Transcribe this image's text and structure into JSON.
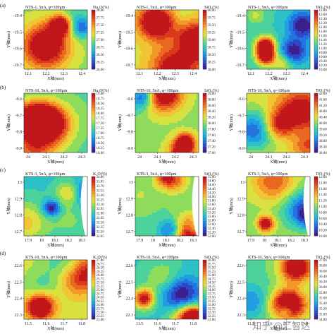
{
  "figure": {
    "watermark": "知乎 @汇智达",
    "rows": [
      {
        "label": "(a)",
        "panels": [
          {
            "title": "NTS-1, 5nA, φ=100μm",
            "oxide": "Na₂O(%)",
            "xlabel": "X轴(mm)",
            "ylabel": "Y轴(mm)",
            "xticks": [
              "12.1",
              "12.2",
              "12.3",
              "12.4"
            ],
            "yticks": [
              "-19.4",
              "-19.5",
              "-19.6",
              "-19.7"
            ],
            "cbticks": [
              "28.00",
              "27.75",
              "27.50",
              "27.25",
              "27.00",
              "26.75",
              "26.50",
              "26.25",
              "26.00"
            ],
            "seed": 11
          },
          {
            "title": "NTS-1, 5nA, φ=100μm",
            "oxide": "SiO₂(%)",
            "xlabel": "X轴(mm)",
            "ylabel": "Y轴(mm)",
            "xticks": [
              "12.1",
              "12.2",
              "12.3",
              "12.4"
            ],
            "yticks": [
              "-19.4",
              "-19.5",
              "-19.6",
              "-19.7"
            ],
            "cbticks": [
              "60.00",
              "59.75",
              "59.50",
              "59.25",
              "59.00",
              "58.75",
              "58.50",
              "58.25",
              "58.00"
            ],
            "seed": 12
          },
          {
            "title": "NTS-1, 5nA, φ=100μm",
            "oxide": "TiO₂(%)",
            "xlabel": "X轴(mm)",
            "ylabel": "Y轴(mm)",
            "xticks": [
              "12.1",
              "12.2",
              "12.3",
              "12.4"
            ],
            "yticks": [
              "-19.4",
              "-19.5",
              "-19.6",
              "-19.7"
            ],
            "cbticks": [
              "12.80",
              "12.60",
              "12.40",
              "12.20",
              "12.00",
              "11.80",
              "11.60",
              "11.40",
              "11.20",
              "11.00",
              "10.80",
              "10.60",
              "10.40",
              "10.20",
              "10.00"
            ],
            "seed": 13
          }
        ]
      },
      {
        "label": "(b)",
        "panels": [
          {
            "title": "NTS-10, 5nA, φ=100μm",
            "oxide": "Na₂O(%)",
            "xlabel": "X轴(mm)",
            "ylabel": "Y轴(mm)",
            "xticks": [
              "24",
              "24.1",
              "24.2",
              "24.3"
            ],
            "yticks": [
              "-9.6",
              "-9.7",
              "-9.8",
              "-9.9"
            ],
            "cbticks": [
              "19.00",
              "18.75",
              "18.50",
              "18.25",
              "18.00",
              "17.75",
              "17.50",
              "17.25",
              "17.00",
              "16.75",
              "16.50",
              "16.25",
              "16.00"
            ],
            "seed": 21
          },
          {
            "title": "NTS-10, 5nA, φ=100μm",
            "oxide": "SiO₂(%)",
            "xlabel": "X轴(mm)",
            "ylabel": "Y轴(mm)",
            "xticks": [
              "24",
              "24.1",
              "24.2",
              "24.3"
            ],
            "yticks": [
              "-9.6",
              "-9.7",
              "-9.8",
              "-9.9"
            ],
            "cbticks": [
              "39.00",
              "38.80",
              "38.60",
              "38.40",
              "38.20",
              "38.00",
              "37.80",
              "37.60",
              "37.40",
              "37.20",
              "37.00"
            ],
            "seed": 22
          },
          {
            "title": "NTS-10, 5nA, φ=100μm",
            "oxide": "TiO₂(%)",
            "xlabel": "X轴(mm)",
            "ylabel": "Y轴(mm)",
            "xticks": [
              "24",
              "24.1",
              "24.2",
              "24.3"
            ],
            "yticks": [
              "-9.6",
              "-9.7",
              "-9.8",
              "-9.9"
            ],
            "cbticks": [
              "42.00",
              "41.60",
              "41.20",
              "40.80",
              "40.40",
              "40.00",
              "39.60",
              "39.20",
              "38.80",
              "38.40",
              "38.00"
            ],
            "seed": 23
          }
        ]
      },
      {
        "label": "(c)",
        "panels": [
          {
            "title": "KTS-3, 5nA, φ=100μm",
            "oxide": "K₂O(%)",
            "xlabel": "X轴(mm)",
            "ylabel": "Y轴(mm)",
            "xticks": [
              "17.9",
              "18",
              "18.1",
              "18.2",
              "18.3"
            ],
            "yticks": [
              "13",
              "12.9",
              "12.8",
              "12.7"
            ],
            "cbticks": [
              "34.00",
              "33.85",
              "33.70",
              "33.55",
              "33.40",
              "33.25",
              "33.10",
              "32.95",
              "32.80",
              "32.65",
              "32.50",
              "32.35",
              "32.20",
              "32.05"
            ],
            "seed": 31
          },
          {
            "title": "KTS-3, 5nA, φ=100μm",
            "oxide": "SiO₂(%)",
            "xlabel": "X轴(mm)",
            "ylabel": "Y轴(mm)",
            "xticks": [
              "17.9",
              "18",
              "18.1",
              "18.2",
              "18.3"
            ],
            "yticks": [
              "13",
              "12.9",
              "12.8",
              "12.7"
            ],
            "cbticks": [
              "55.00",
              "54.80",
              "54.60",
              "54.40",
              "54.20",
              "54.00",
              "53.80",
              "53.60",
              "53.40",
              "53.20",
              "53.00",
              "52.80",
              "52.60",
              "52.40",
              "52.20",
              "52.00"
            ],
            "seed": 32
          },
          {
            "title": "KTS-3, 5nA, φ=100μm",
            "oxide": "TiO₂(%)",
            "xlabel": "X轴(mm)",
            "ylabel": "Y轴(mm)",
            "xticks": [
              "17.9",
              "18",
              "18.1",
              "18.2",
              "18.3"
            ],
            "yticks": [
              "13",
              "12.9",
              "12.8",
              "12.7"
            ],
            "cbticks": [
              "12.00",
              "11.80",
              "11.60",
              "11.40",
              "11.20",
              "11.00",
              "10.80",
              "10.60",
              "10.40",
              "10.20",
              "10.00"
            ],
            "seed": 33
          }
        ]
      },
      {
        "label": "(d)",
        "panels": [
          {
            "title": "KTS-10, 5nA, φ=100μm",
            "oxide": "K₂O(%)",
            "xlabel": "X轴(mm)",
            "ylabel": "Y轴(mm)",
            "xticks": [
              "11.5",
              "11.6",
              "11.7",
              "11.8"
            ],
            "yticks": [
              "22.6",
              "22.5",
              "22.4",
              "22.3"
            ],
            "cbticks": [
              "27.00",
              "26.75",
              "26.50",
              "26.25",
              "26.00",
              "25.75",
              "25.50",
              "25.25",
              "25.00",
              "24.75",
              "24.50",
              "24.25",
              "24.00",
              "23.75",
              "23.50",
              "23.25",
              "23.00"
            ],
            "seed": 41
          },
          {
            "title": "KTS-10, 5nA, φ=100μm",
            "oxide": "SiO₂(%)",
            "xlabel": "X轴(mm)",
            "ylabel": "Y轴(mm)",
            "xticks": [
              "11.5",
              "11.6",
              "11.7",
              "11.8"
            ],
            "yticks": [
              "22.6",
              "22.5",
              "22.4",
              "22.3"
            ],
            "cbticks": [
              "36.00",
              "35.75",
              "35.50",
              "35.25",
              "35.00",
              "34.75",
              "34.50",
              "34.25",
              "34.00",
              "33.75",
              "33.50",
              "33.25",
              "33.00",
              "32.75",
              "32.50",
              "32.25",
              "32.00"
            ],
            "seed": 42
          },
          {
            "title": "KTS-10, 5nA, φ=100μm",
            "oxide": "TiO₂(%)",
            "xlabel": "X轴(mm)",
            "ylabel": "Y轴(mm)",
            "xticks": [
              "11.5",
              "11.6",
              "11.7",
              "11.8"
            ],
            "yticks": [
              "22.6",
              "22.5",
              "22.4",
              "22.3"
            ],
            "cbticks": [
              "37.00",
              "36.80",
              "36.60",
              "36.40",
              "36.20",
              "36.00",
              "35.80",
              "35.60",
              "35.40",
              "35.20",
              "35.00",
              "34.80"
            ],
            "seed": 43
          }
        ]
      }
    ]
  },
  "colors": {
    "colormap": [
      "#3b1f8f",
      "#2a4fd1",
      "#1f86e8",
      "#22b8d8",
      "#3fd0a6",
      "#8fdc5c",
      "#e8e23a",
      "#f5b52f",
      "#ef7a22",
      "#e0401c",
      "#c1171b"
    ]
  },
  "chart_data": {
    "type": "heatmap",
    "layout": "4x3 grid of composition maps",
    "panels": [
      {
        "row": "(a)",
        "sample": "NTS-1, 5nA, φ=100μm",
        "variable": "Na₂O(%)",
        "range": [
          26.0,
          28.0
        ]
      },
      {
        "row": "(a)",
        "sample": "NTS-1, 5nA, φ=100μm",
        "variable": "SiO₂(%)",
        "range": [
          58.0,
          60.0
        ]
      },
      {
        "row": "(a)",
        "sample": "NTS-1, 5nA, φ=100μm",
        "variable": "TiO₂(%)",
        "range": [
          10.0,
          12.8
        ]
      },
      {
        "row": "(b)",
        "sample": "NTS-10, 5nA, φ=100μm",
        "variable": "Na₂O(%)",
        "range": [
          16.0,
          19.0
        ]
      },
      {
        "row": "(b)",
        "sample": "NTS-10, 5nA, φ=100μm",
        "variable": "SiO₂(%)",
        "range": [
          37.0,
          39.0
        ]
      },
      {
        "row": "(b)",
        "sample": "NTS-10, 5nA, φ=100μm",
        "variable": "TiO₂(%)",
        "range": [
          38.0,
          42.0
        ]
      },
      {
        "row": "(c)",
        "sample": "KTS-3, 5nA, φ=100μm",
        "variable": "K₂O(%)",
        "range": [
          32.05,
          34.0
        ]
      },
      {
        "row": "(c)",
        "sample": "KTS-3, 5nA, φ=100μm",
        "variable": "SiO₂(%)",
        "range": [
          52.0,
          55.0
        ]
      },
      {
        "row": "(c)",
        "sample": "KTS-3, 5nA, φ=100μm",
        "variable": "TiO₂(%)",
        "range": [
          10.0,
          12.0
        ]
      },
      {
        "row": "(d)",
        "sample": "KTS-10, 5nA, φ=100μm",
        "variable": "K₂O(%)",
        "range": [
          23.0,
          27.0
        ]
      },
      {
        "row": "(d)",
        "sample": "KTS-10, 5nA, φ=100μm",
        "variable": "SiO₂(%)",
        "range": [
          32.0,
          36.0
        ]
      },
      {
        "row": "(d)",
        "sample": "KTS-10, 5nA, φ=100μm",
        "variable": "TiO₂(%)",
        "range": [
          34.8,
          37.0
        ]
      }
    ]
  }
}
